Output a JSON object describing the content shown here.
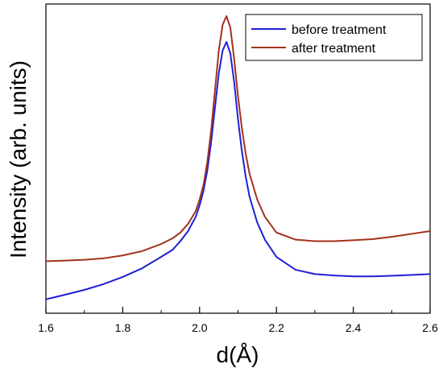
{
  "chart_data": {
    "type": "line",
    "title": "",
    "xlabel": "d(Å)",
    "ylabel": "Intensity (arb. units)",
    "xlim": [
      1.6,
      2.6
    ],
    "ylim": [
      0,
      1
    ],
    "y_ticks_labeled": false,
    "grid": false,
    "legend_position": "top-right",
    "x_ticks": [
      "1.6",
      "1.8",
      "2.0",
      "2.2",
      "2.4",
      "2.6"
    ],
    "series": [
      {
        "name": "before treatment",
        "color": "#1f1fd6",
        "x": [
          1.6,
          1.65,
          1.7,
          1.75,
          1.8,
          1.85,
          1.9,
          1.93,
          1.95,
          1.97,
          1.99,
          2.0,
          2.01,
          2.02,
          2.03,
          2.04,
          2.05,
          2.06,
          2.07,
          2.08,
          2.09,
          2.1,
          2.11,
          2.12,
          2.13,
          2.15,
          2.17,
          2.2,
          2.25,
          2.3,
          2.35,
          2.4,
          2.45,
          2.5,
          2.55,
          2.6
        ],
        "values": [
          0.012,
          0.028,
          0.045,
          0.065,
          0.09,
          0.12,
          0.16,
          0.185,
          0.215,
          0.25,
          0.3,
          0.34,
          0.39,
          0.46,
          0.56,
          0.68,
          0.8,
          0.88,
          0.91,
          0.87,
          0.77,
          0.64,
          0.53,
          0.44,
          0.37,
          0.28,
          0.22,
          0.16,
          0.115,
          0.1,
          0.095,
          0.092,
          0.092,
          0.094,
          0.097,
          0.1
        ]
      },
      {
        "name": "after treatment",
        "color": "#a3321c",
        "x": [
          1.6,
          1.65,
          1.7,
          1.75,
          1.8,
          1.85,
          1.9,
          1.93,
          1.95,
          1.97,
          1.99,
          2.0,
          2.01,
          2.02,
          2.03,
          2.04,
          2.05,
          2.06,
          2.07,
          2.08,
          2.09,
          2.1,
          2.11,
          2.12,
          2.13,
          2.15,
          2.17,
          2.2,
          2.25,
          2.3,
          2.35,
          2.4,
          2.45,
          2.5,
          2.55,
          2.6
        ],
        "values": [
          0.145,
          0.147,
          0.15,
          0.155,
          0.165,
          0.18,
          0.205,
          0.225,
          0.245,
          0.275,
          0.32,
          0.36,
          0.41,
          0.49,
          0.6,
          0.74,
          0.88,
          0.97,
          1.0,
          0.96,
          0.85,
          0.72,
          0.61,
          0.52,
          0.45,
          0.36,
          0.3,
          0.245,
          0.22,
          0.215,
          0.215,
          0.218,
          0.222,
          0.23,
          0.24,
          0.25
        ]
      }
    ]
  }
}
